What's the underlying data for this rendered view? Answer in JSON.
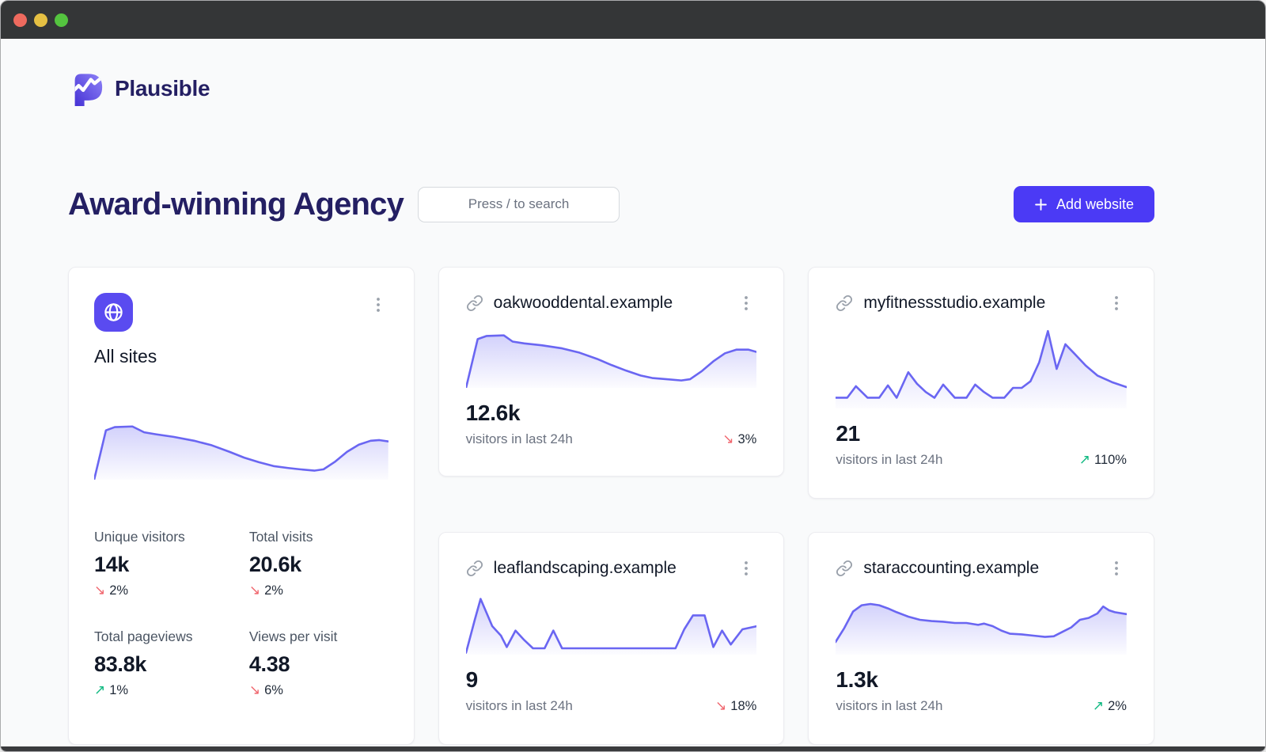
{
  "titlebar": {
    "controls": [
      "close",
      "minimize",
      "zoom"
    ]
  },
  "brand": {
    "name": "Plausible"
  },
  "page": {
    "title": "Award-winning Agency"
  },
  "search": {
    "placeholder": "Press / to search"
  },
  "actions": {
    "add_website": "Add website"
  },
  "colors": {
    "accent": "#4b3af5",
    "sparkline": "#6a66f2",
    "trend_down": "#f0666e",
    "trend_up": "#10b981",
    "heading": "#241f63",
    "titlebar": "#343637",
    "page_bg": "#f9fafb"
  },
  "all_sites": {
    "title": "All sites",
    "stats": [
      {
        "label": "Unique visitors",
        "value": "14k",
        "delta": "2%",
        "trend": "down"
      },
      {
        "label": "Total visits",
        "value": "20.6k",
        "delta": "2%",
        "trend": "down"
      },
      {
        "label": "Total pageviews",
        "value": "83.8k",
        "delta": "1%",
        "trend": "up"
      },
      {
        "label": "Views per visit",
        "value": "4.38",
        "delta": "6%",
        "trend": "down"
      }
    ]
  },
  "sites": [
    {
      "domain": "oakwooddental.example",
      "value": "12.6k",
      "caption": "visitors in last 24h",
      "delta": "3%",
      "trend": "down",
      "spellcheck_underline": false
    },
    {
      "domain": "myfitnessstudio.example",
      "value": "21",
      "caption": "visitors in last 24h",
      "delta": "110%",
      "trend": "up",
      "spellcheck_underline": false
    },
    {
      "domain": "leaflandscaping.example",
      "value": "9",
      "caption": "visitors in last 24h",
      "delta": "18%",
      "trend": "down",
      "spellcheck_underline": true
    },
    {
      "domain": "staraccounting.example",
      "value": "1.3k",
      "caption": "visitors in last 24h",
      "delta": "2%",
      "trend": "up",
      "spellcheck_underline": false
    }
  ],
  "chart_data": [
    {
      "name": "All sites",
      "type": "line",
      "legend": "none",
      "axes": "none (sparkline)",
      "scale_note": "relative units, x 0-100 = last 24h, y 0 top / 100 bottom",
      "points": [
        [
          0,
          100
        ],
        [
          4,
          24
        ],
        [
          7,
          19
        ],
        [
          13,
          18
        ],
        [
          17,
          27
        ],
        [
          21,
          30
        ],
        [
          27,
          34
        ],
        [
          34,
          40
        ],
        [
          40,
          47
        ],
        [
          46,
          57
        ],
        [
          51,
          66
        ],
        [
          56,
          73
        ],
        [
          61,
          79
        ],
        [
          66,
          82
        ],
        [
          70,
          84
        ],
        [
          75,
          86
        ],
        [
          78,
          84
        ],
        [
          82,
          72
        ],
        [
          86,
          57
        ],
        [
          90,
          46
        ],
        [
          94,
          40
        ],
        [
          97,
          39
        ],
        [
          100,
          41
        ]
      ]
    },
    {
      "name": "oakwooddental.example",
      "type": "line",
      "legend": "none",
      "axes": "none (sparkline)",
      "scale_note": "relative units",
      "points": [
        [
          0,
          100
        ],
        [
          4,
          21
        ],
        [
          7,
          16
        ],
        [
          13,
          15
        ],
        [
          16,
          25
        ],
        [
          20,
          28
        ],
        [
          26,
          31
        ],
        [
          33,
          36
        ],
        [
          39,
          43
        ],
        [
          45,
          53
        ],
        [
          50,
          63
        ],
        [
          55,
          72
        ],
        [
          60,
          80
        ],
        [
          64,
          84
        ],
        [
          69,
          86
        ],
        [
          74,
          88
        ],
        [
          77,
          86
        ],
        [
          81,
          73
        ],
        [
          85,
          57
        ],
        [
          89,
          44
        ],
        [
          93,
          38
        ],
        [
          97,
          38
        ],
        [
          100,
          42
        ]
      ]
    },
    {
      "name": "myfitnessstudio.example",
      "type": "line",
      "legend": "none",
      "axes": "none (sparkline)",
      "scale_note": "relative units",
      "points": [
        [
          0,
          87
        ],
        [
          4,
          87
        ],
        [
          7,
          73
        ],
        [
          11,
          87
        ],
        [
          15,
          87
        ],
        [
          18,
          72
        ],
        [
          21,
          87
        ],
        [
          25,
          56
        ],
        [
          28,
          70
        ],
        [
          31,
          80
        ],
        [
          34,
          87
        ],
        [
          37,
          71
        ],
        [
          41,
          87
        ],
        [
          45,
          87
        ],
        [
          48,
          71
        ],
        [
          51,
          80
        ],
        [
          54,
          87
        ],
        [
          58,
          87
        ],
        [
          61,
          75
        ],
        [
          64,
          75
        ],
        [
          67,
          67
        ],
        [
          70,
          44
        ],
        [
          73,
          6
        ],
        [
          76,
          52
        ],
        [
          79,
          22
        ],
        [
          82,
          33
        ],
        [
          86,
          48
        ],
        [
          90,
          60
        ],
        [
          95,
          68
        ],
        [
          100,
          74
        ]
      ]
    },
    {
      "name": "leaflandscaping.example",
      "type": "line",
      "legend": "none",
      "axes": "none (sparkline)",
      "scale_note": "relative units",
      "points": [
        [
          0,
          97
        ],
        [
          3,
          45
        ],
        [
          5,
          12
        ],
        [
          9,
          55
        ],
        [
          12,
          70
        ],
        [
          14,
          88
        ],
        [
          17,
          62
        ],
        [
          20,
          77
        ],
        [
          23,
          90
        ],
        [
          27,
          90
        ],
        [
          30,
          62
        ],
        [
          33,
          90
        ],
        [
          38,
          90
        ],
        [
          48,
          90
        ],
        [
          58,
          90
        ],
        [
          68,
          90
        ],
        [
          72,
          90
        ],
        [
          75,
          60
        ],
        [
          78,
          38
        ],
        [
          82,
          38
        ],
        [
          85,
          88
        ],
        [
          88,
          62
        ],
        [
          91,
          84
        ],
        [
          95,
          60
        ],
        [
          100,
          55
        ]
      ]
    },
    {
      "name": "staraccounting.example",
      "type": "line",
      "legend": "none",
      "axes": "none (sparkline)",
      "scale_note": "relative units",
      "points": [
        [
          0,
          80
        ],
        [
          3,
          58
        ],
        [
          6,
          32
        ],
        [
          9,
          22
        ],
        [
          12,
          20
        ],
        [
          15,
          22
        ],
        [
          18,
          27
        ],
        [
          21,
          33
        ],
        [
          25,
          40
        ],
        [
          29,
          45
        ],
        [
          33,
          47
        ],
        [
          37,
          48
        ],
        [
          41,
          50
        ],
        [
          45,
          50
        ],
        [
          49,
          53
        ],
        [
          51,
          51
        ],
        [
          54,
          55
        ],
        [
          57,
          62
        ],
        [
          60,
          67
        ],
        [
          64,
          68
        ],
        [
          68,
          70
        ],
        [
          72,
          72
        ],
        [
          75,
          71
        ],
        [
          78,
          64
        ],
        [
          81,
          57
        ],
        [
          84,
          45
        ],
        [
          87,
          42
        ],
        [
          90,
          35
        ],
        [
          92,
          24
        ],
        [
          94,
          30
        ],
        [
          96,
          33
        ],
        [
          100,
          36
        ]
      ]
    }
  ]
}
